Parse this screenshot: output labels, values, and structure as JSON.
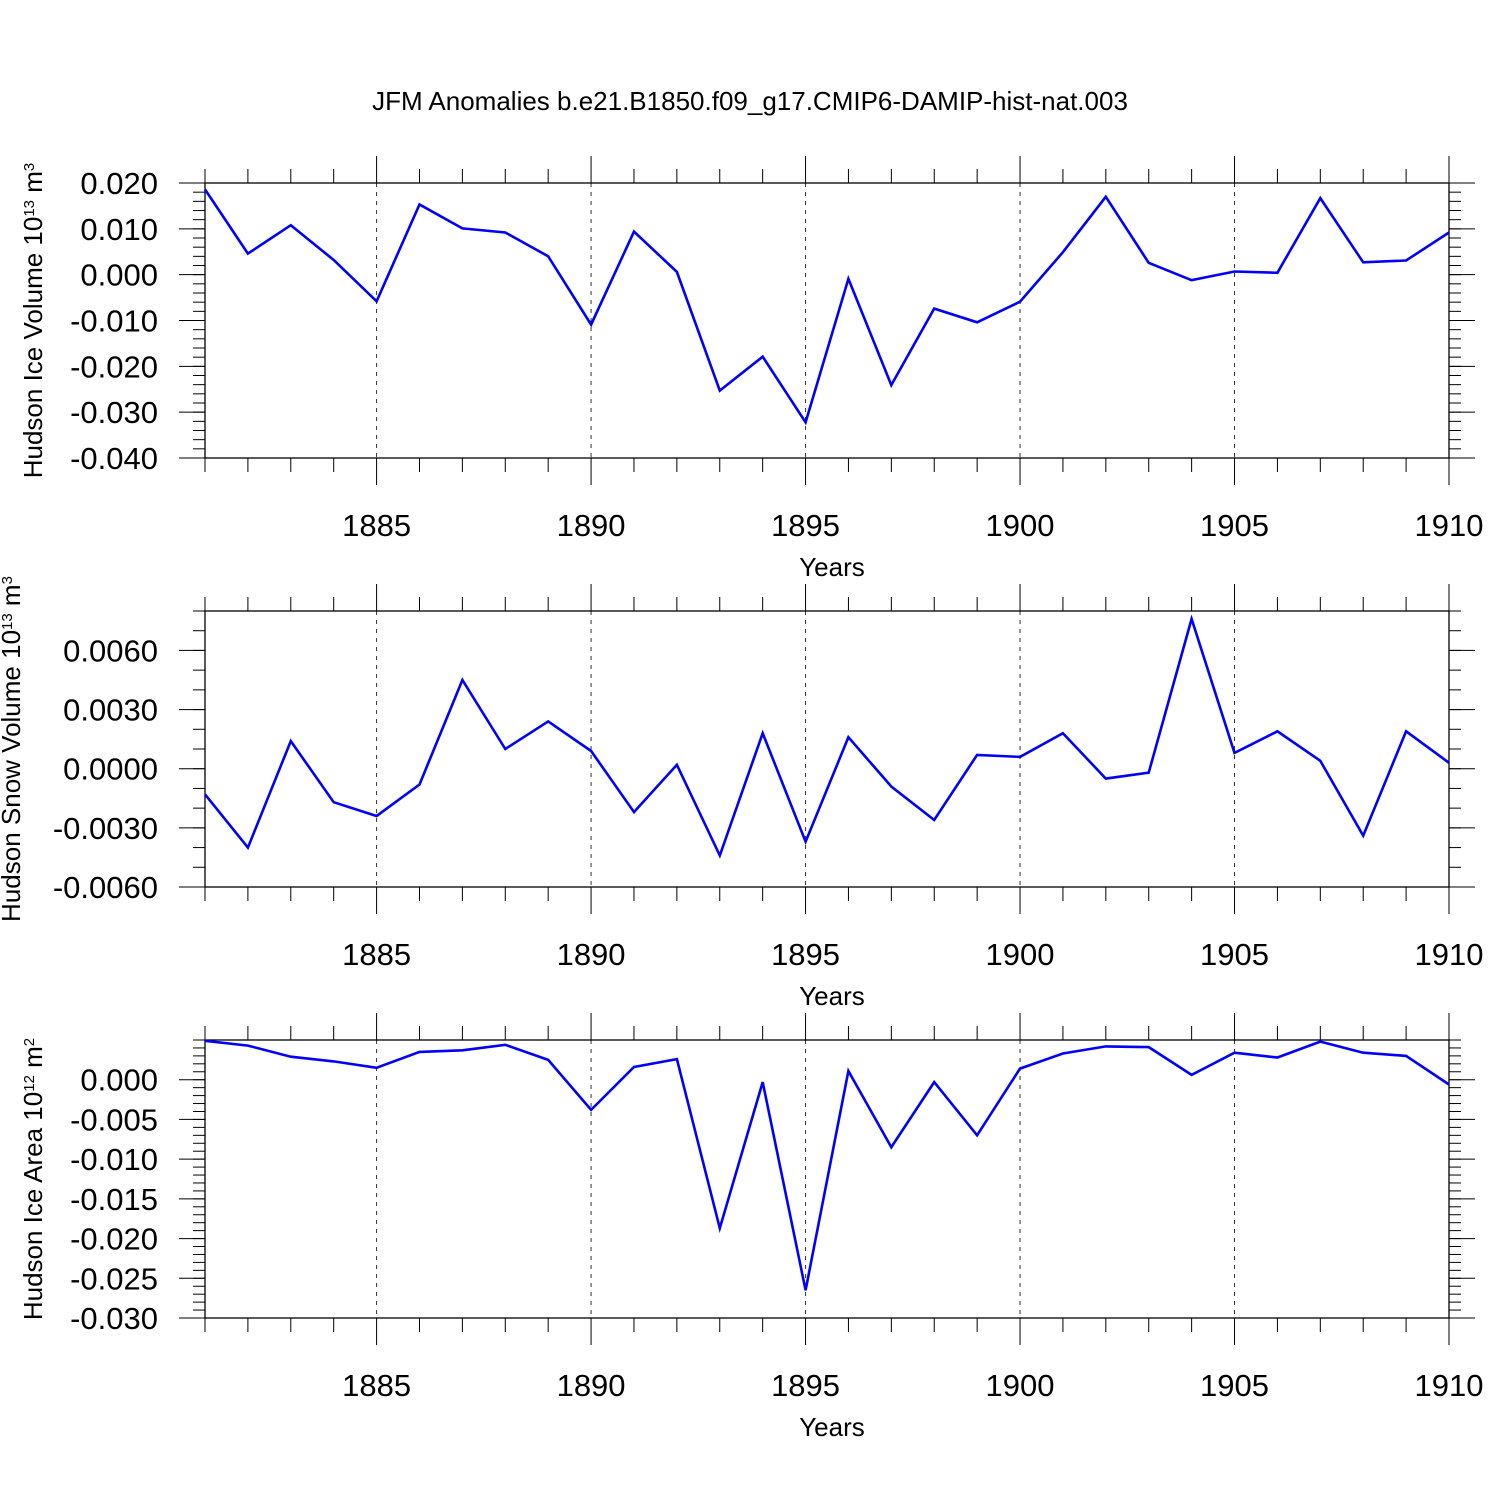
{
  "title": "JFM Anomalies b.e21.B1850.f09_g17.CMIP6-DAMIP-hist-nat.003",
  "line_color": "#0000ff",
  "chart_data": [
    {
      "type": "line",
      "xlabel": "Years",
      "ylabel": "Hudson Ice Volume 10",
      "ylabel_sup": "13",
      "ylabel_unit": " m",
      "ylabel_unit_sup": "3",
      "xlim": [
        1881,
        1910
      ],
      "ylim": [
        -0.04,
        0.02
      ],
      "yticks": [
        -0.04,
        -0.03,
        -0.02,
        -0.01,
        0.0,
        0.01,
        0.02
      ],
      "yticklabels": [
        "-0.040",
        "-0.030",
        "-0.020",
        "-0.010",
        "0.000",
        "0.010",
        "0.020"
      ],
      "yminor": 0.002,
      "xticks": [
        1885,
        1890,
        1895,
        1900,
        1905,
        1910
      ],
      "xticklabels": [
        "1885",
        "1890",
        "1895",
        "1900",
        "1905",
        "1910"
      ],
      "grid": "x-dashed",
      "x": [
        1881,
        1882,
        1883,
        1884,
        1885,
        1886,
        1887,
        1888,
        1889,
        1890,
        1891,
        1892,
        1893,
        1894,
        1895,
        1896,
        1897,
        1898,
        1899,
        1900,
        1901,
        1902,
        1903,
        1904,
        1905,
        1906,
        1907,
        1908,
        1909,
        1910
      ],
      "values": [
        0.0186,
        0.0046,
        0.0108,
        0.0032,
        -0.0058,
        0.0153,
        0.0101,
        0.0092,
        0.004,
        -0.0109,
        0.0094,
        0.0006,
        -0.0253,
        -0.0179,
        -0.0322,
        -0.0009,
        -0.0241,
        -0.0074,
        -0.0104,
        -0.0059,
        0.0049,
        0.017,
        0.0026,
        -0.0012,
        0.0007,
        0.0004,
        0.0167,
        0.0027,
        0.0031,
        0.0092
      ]
    },
    {
      "type": "line",
      "xlabel": "Years",
      "ylabel": "Hudson Snow Volume 10",
      "ylabel_sup": "13",
      "ylabel_unit": " m",
      "ylabel_unit_sup": "3",
      "xlim": [
        1881,
        1910
      ],
      "ylim": [
        -0.006,
        0.008
      ],
      "yticks": [
        -0.006,
        -0.003,
        0.0,
        0.003,
        0.006
      ],
      "yticklabels": [
        "-0.0060",
        "-0.0030",
        "0.0000",
        "0.0030",
        "0.0060"
      ],
      "yminor": 0.001,
      "xticks": [
        1885,
        1890,
        1895,
        1900,
        1905,
        1910
      ],
      "xticklabels": [
        "1885",
        "1890",
        "1895",
        "1900",
        "1905",
        "1910"
      ],
      "grid": "x-dashed",
      "x": [
        1881,
        1882,
        1883,
        1884,
        1885,
        1886,
        1887,
        1888,
        1889,
        1890,
        1891,
        1892,
        1893,
        1894,
        1895,
        1896,
        1897,
        1898,
        1899,
        1900,
        1901,
        1902,
        1903,
        1904,
        1905,
        1906,
        1907,
        1908,
        1909,
        1910
      ],
      "values": [
        -0.0013,
        -0.004,
        0.0014,
        -0.0017,
        -0.0024,
        -0.0008,
        0.0045,
        0.001,
        0.0024,
        0.0009,
        -0.0022,
        0.0002,
        -0.0044,
        0.0018,
        -0.0037,
        0.0016,
        -0.0009,
        -0.0026,
        0.0007,
        0.0006,
        0.0018,
        -0.0005,
        -0.0002,
        0.0076,
        0.0008,
        0.0019,
        0.0004,
        -0.0034,
        0.0019,
        0.0003
      ]
    },
    {
      "type": "line",
      "xlabel": "Years",
      "ylabel": "Hudson Ice Area 10",
      "ylabel_sup": "12",
      "ylabel_unit": " m",
      "ylabel_unit_sup": "2",
      "xlim": [
        1881,
        1910
      ],
      "ylim": [
        -0.03,
        0.005
      ],
      "yticks": [
        -0.03,
        -0.025,
        -0.02,
        -0.015,
        -0.01,
        -0.005,
        0.0
      ],
      "yticklabels": [
        "-0.030",
        "-0.025",
        "-0.020",
        "-0.015",
        "-0.010",
        "-0.005",
        "0.000"
      ],
      "yminor": 0.001,
      "xticks": [
        1885,
        1890,
        1895,
        1900,
        1905,
        1910
      ],
      "xticklabels": [
        "1885",
        "1890",
        "1895",
        "1900",
        "1905",
        "1910"
      ],
      "grid": "x-dashed",
      "x": [
        1881,
        1882,
        1883,
        1884,
        1885,
        1886,
        1887,
        1888,
        1889,
        1890,
        1891,
        1892,
        1893,
        1894,
        1895,
        1896,
        1897,
        1898,
        1899,
        1900,
        1901,
        1902,
        1903,
        1904,
        1905,
        1906,
        1907,
        1908,
        1909,
        1910
      ],
      "values": [
        0.0049,
        0.0043,
        0.0029,
        0.0023,
        0.0015,
        0.0035,
        0.0037,
        0.0044,
        0.0025,
        -0.0038,
        0.0016,
        0.0026,
        -0.0187,
        -0.0003,
        -0.0265,
        0.0011,
        -0.0085,
        -0.0003,
        -0.007,
        0.0014,
        0.0033,
        0.0042,
        0.0041,
        0.0006,
        0.0034,
        0.0028,
        0.0048,
        0.0034,
        0.003,
        -0.0006
      ]
    }
  ]
}
